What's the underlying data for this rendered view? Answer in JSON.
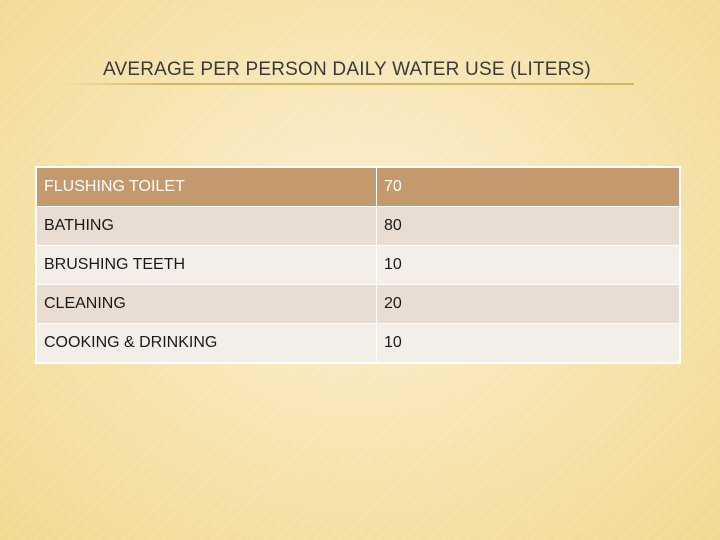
{
  "slide": {
    "title": "AVERAGE PER PERSON DAILY WATER USE (LITERS)"
  },
  "table": {
    "header": {
      "activity": "FLUSHING TOILET",
      "liters": "70"
    },
    "rows": [
      {
        "activity": "BATHING",
        "liters": "80"
      },
      {
        "activity": "BRUSHING TEETH",
        "liters": "10"
      },
      {
        "activity": "CLEANING",
        "liters": "20"
      },
      {
        "activity": "COOKING & DRINKING",
        "liters": "10"
      }
    ]
  },
  "colors": {
    "header_fill": "#c49a6c",
    "row_fill_a": "#e9dcd2",
    "row_fill_b": "#f4eee9",
    "accent_rule": "#d9b45a"
  }
}
